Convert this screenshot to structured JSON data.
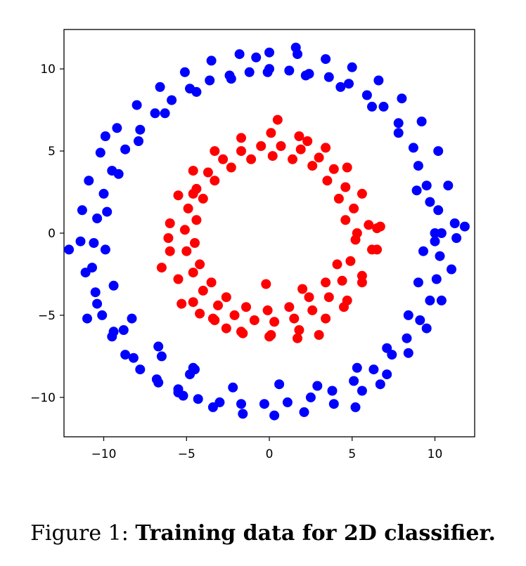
{
  "caption": {
    "prefix": "Figure 1:",
    "title": "Training data for 2D classifier."
  },
  "colors": {
    "outer": "#0000ff",
    "inner": "#ff0000"
  },
  "chart_data": {
    "type": "scatter",
    "title": "",
    "xlabel": "",
    "ylabel": "",
    "xlim": [
      -12.4,
      12.4
    ],
    "ylim": [
      -12.4,
      12.4
    ],
    "xticks": [
      -10,
      -5,
      0,
      5,
      10
    ],
    "yticks": [
      -10,
      -5,
      0,
      5,
      10
    ],
    "xtick_labels": [
      "−10",
      "−5",
      "0",
      "5",
      "10"
    ],
    "ytick_labels": [
      "−10",
      "−5",
      "0",
      "5",
      "10"
    ],
    "grid": false,
    "series": [
      {
        "color": "#0000ff",
        "x": [
          10.0,
          9.5,
          8.7,
          7.8,
          6.9,
          5.9,
          4.8,
          3.6,
          2.4,
          1.2,
          0.0,
          -1.2,
          -2.4,
          -3.6,
          -4.8,
          -5.9,
          -6.9,
          -7.8,
          -8.7,
          -9.5,
          -10.0,
          -10.4,
          -10.6,
          -10.7,
          -10.5,
          -10.1,
          -9.5,
          -8.7,
          -7.8,
          -6.7,
          -5.5,
          -4.3,
          -3.0,
          -1.7,
          -0.3,
          1.1,
          2.5,
          3.8,
          5.1,
          6.3,
          7.4,
          8.3,
          9.1,
          9.7,
          10.1,
          10.3,
          10.4,
          10.2,
          11.2,
          10.8,
          10.2,
          9.2,
          8.0,
          6.6,
          5.0,
          3.4,
          1.7,
          0.0,
          -1.8,
          -3.5,
          -5.1,
          -6.6,
          -8.0,
          -9.2,
          -10.2,
          -10.9,
          -11.3,
          -11.4,
          -11.1,
          -10.4,
          -9.4,
          -8.2,
          -6.8,
          -5.2,
          -3.4,
          -1.6,
          0.3,
          2.1,
          3.9,
          5.6,
          7.1,
          8.4,
          9.5,
          10.4,
          11.0,
          11.3,
          -12.1,
          11.8,
          9.0,
          8.4,
          7.1,
          5.3,
          2.9,
          0.6,
          -2.2,
          -4.6,
          -6.7,
          -8.3,
          -9.4,
          -9.9,
          -9.8,
          -9.1,
          -7.9,
          -6.3,
          -4.4,
          -2.3,
          -0.1,
          2.2,
          4.3,
          6.2,
          7.8,
          9.0,
          9.7,
          10.0,
          -4.5,
          -5.5,
          -4.8,
          -6.5,
          -8.8,
          6.7,
          5.2,
          9.3,
          -0.8,
          1.6,
          8.9,
          -9.9,
          -11.0
        ],
        "y": [
          0.0,
          2.9,
          5.2,
          6.7,
          7.7,
          8.4,
          9.1,
          9.5,
          9.7,
          9.9,
          10.0,
          9.8,
          9.6,
          9.3,
          8.8,
          8.1,
          7.3,
          6.3,
          5.1,
          3.8,
          2.4,
          0.9,
          -0.6,
          -2.1,
          -3.6,
          -5.0,
          -6.3,
          -7.4,
          -8.3,
          -9.1,
          -9.7,
          -10.1,
          -10.3,
          -10.4,
          -10.4,
          -10.3,
          -10.0,
          -9.6,
          -9.0,
          -8.3,
          -7.4,
          -6.4,
          -5.3,
          -4.1,
          -2.8,
          -1.4,
          0.0,
          1.4,
          0.6,
          2.9,
          5.0,
          6.8,
          8.2,
          9.3,
          10.1,
          10.6,
          10.9,
          11.0,
          10.9,
          10.5,
          9.8,
          8.9,
          7.8,
          6.4,
          4.9,
          3.2,
          1.4,
          -0.5,
          -2.4,
          -4.3,
          -6.0,
          -7.6,
          -8.9,
          -9.9,
          -10.6,
          -11.0,
          -11.1,
          -10.9,
          -10.4,
          -9.6,
          -8.6,
          -7.3,
          -5.8,
          -4.1,
          -2.2,
          -0.3,
          -1.0,
          0.4,
          -3.0,
          -5.0,
          -7.0,
          -8.2,
          -9.3,
          -9.2,
          -9.4,
          -8.2,
          -6.9,
          -5.2,
          -3.2,
          -1.0,
          1.3,
          3.6,
          5.6,
          7.3,
          8.6,
          9.4,
          9.8,
          9.6,
          8.9,
          7.7,
          6.1,
          4.1,
          1.9,
          -0.5,
          -8.3,
          -9.5,
          -8.6,
          -7.5,
          -5.9,
          -9.2,
          -10.6,
          -1.1,
          10.7,
          11.3,
          2.6,
          5.9,
          -5.2
        ]
      },
      {
        "color": "#ff0000",
        "x": [
          5.3,
          5.1,
          4.6,
          3.9,
          3.0,
          1.9,
          0.7,
          -0.5,
          -1.7,
          -2.8,
          -3.7,
          -4.4,
          -4.9,
          -5.1,
          -5.0,
          -4.6,
          -4.0,
          -3.1,
          -2.1,
          -0.9,
          0.3,
          1.5,
          2.6,
          3.6,
          4.4,
          4.9,
          5.2,
          6.0,
          5.6,
          4.7,
          3.4,
          1.8,
          0.1,
          -1.7,
          -3.3,
          -4.6,
          -5.5,
          -6.0,
          -6.0,
          -5.5,
          -4.6,
          -3.3,
          -1.7,
          0.1,
          1.8,
          3.4,
          4.7,
          5.6,
          6.2,
          6.5,
          4.6,
          4.2,
          3.5,
          2.6,
          1.4,
          0.2,
          -1.1,
          -2.3,
          -3.3,
          -4.0,
          -4.4,
          -4.5,
          -4.2,
          -3.5,
          -2.6,
          -1.4,
          -0.1,
          1.2,
          2.4,
          3.4,
          4.1,
          0.5,
          -6.1,
          -4.2,
          2.3,
          1.7,
          -1.6,
          -4.6,
          6.7,
          6.5,
          -6.5,
          3.0,
          0.0,
          -2.6,
          -3.4,
          4.5,
          5.6,
          -5.3,
          -0.2,
          2.0
        ],
        "y": [
          0.0,
          1.5,
          2.8,
          3.9,
          4.6,
          5.1,
          5.3,
          5.3,
          5.0,
          4.5,
          3.7,
          2.7,
          1.5,
          0.2,
          -1.1,
          -2.4,
          -3.5,
          -4.4,
          -5.0,
          -5.3,
          -5.4,
          -5.2,
          -4.7,
          -3.9,
          -2.9,
          -1.7,
          -0.4,
          0.5,
          2.4,
          4.0,
          5.2,
          5.9,
          6.1,
          5.8,
          5.0,
          3.8,
          2.3,
          0.6,
          -1.1,
          -2.8,
          -4.2,
          -5.3,
          -6.0,
          -6.2,
          -5.9,
          -5.2,
          -4.1,
          -2.6,
          -1.0,
          0.3,
          0.8,
          2.1,
          3.2,
          4.1,
          4.5,
          4.7,
          4.5,
          4.0,
          3.2,
          2.1,
          0.8,
          -0.6,
          -1.9,
          -3.0,
          -3.9,
          -4.5,
          -4.7,
          -4.5,
          -3.9,
          -3.0,
          -1.9,
          6.9,
          -0.3,
          -4.9,
          5.6,
          -6.4,
          -6.1,
          2.4,
          0.4,
          -1.0,
          -2.1,
          -6.2,
          -6.3,
          -5.8,
          -5.2,
          -4.5,
          -3.0,
          -4.3,
          -3.1,
          -3.4
        ]
      }
    ]
  }
}
